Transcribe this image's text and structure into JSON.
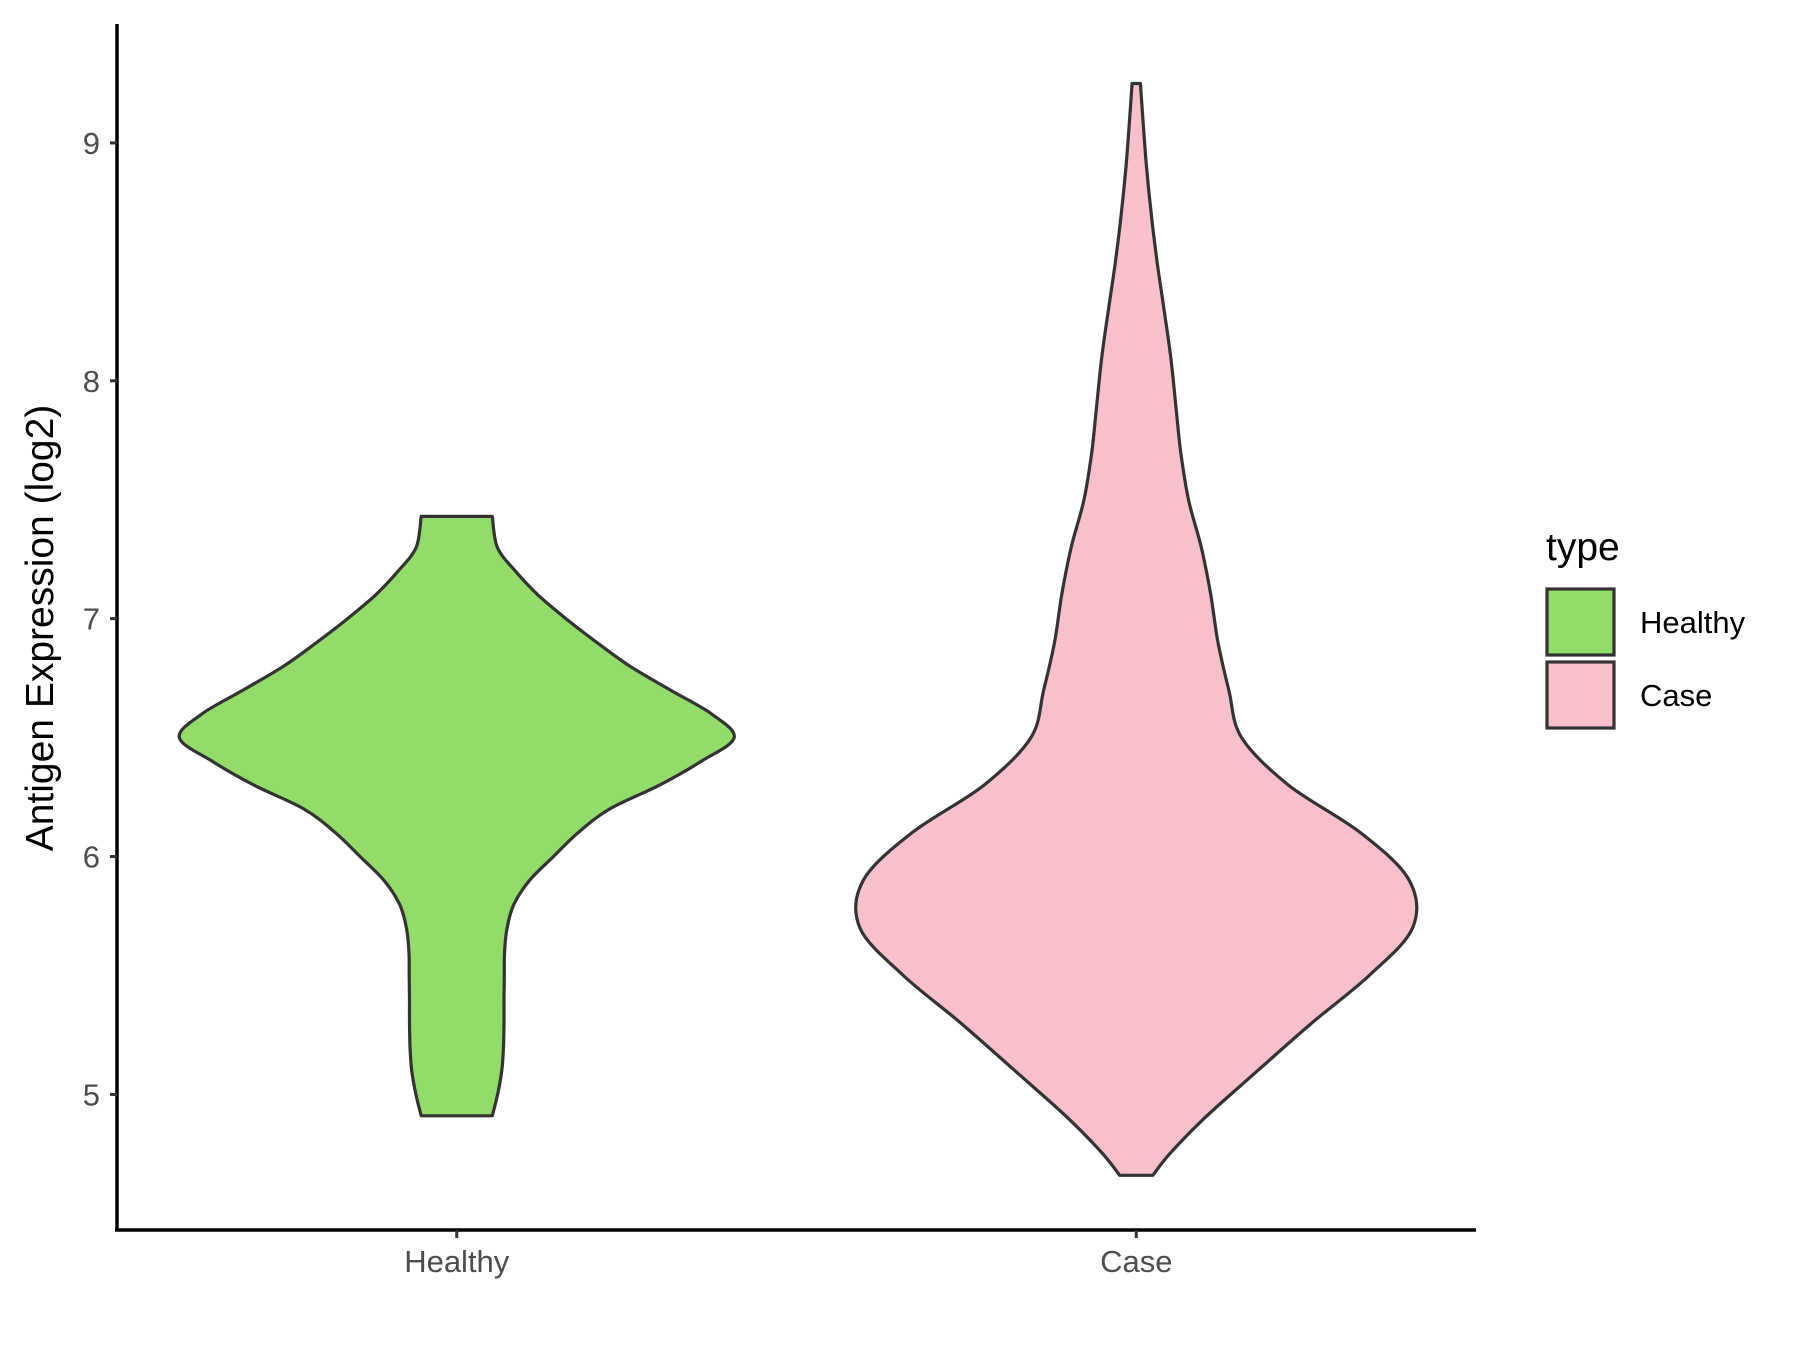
{
  "chart_data": {
    "type": "violin",
    "title": "",
    "xlabel": "",
    "ylabel": "Antigen Expression (log2)",
    "categories": [
      "Healthy",
      "Case"
    ],
    "yticks": [
      5,
      6,
      7,
      8,
      9
    ],
    "ylim": [
      4.43,
      9.5
    ],
    "grid": false,
    "legend": {
      "title": "type",
      "position": "right",
      "entries": [
        {
          "label": "Healthy",
          "color": "#93DC6A"
        },
        {
          "label": "Case",
          "color": "#F8C0CB"
        }
      ]
    },
    "series": [
      {
        "category": "Healthy",
        "color": "#93DC6A",
        "min": 4.91,
        "max": 7.43,
        "density_profile": [
          [
            4.91,
            0.128
          ],
          [
            5.0,
            0.147
          ],
          [
            5.1,
            0.162
          ],
          [
            5.2,
            0.168
          ],
          [
            5.3,
            0.17
          ],
          [
            5.4,
            0.17
          ],
          [
            5.5,
            0.171
          ],
          [
            5.6,
            0.172
          ],
          [
            5.7,
            0.181
          ],
          [
            5.8,
            0.206
          ],
          [
            5.9,
            0.262
          ],
          [
            6.0,
            0.348
          ],
          [
            6.1,
            0.436
          ],
          [
            6.2,
            0.55
          ],
          [
            6.3,
            0.729
          ],
          [
            6.4,
            0.879
          ],
          [
            6.5,
            0.998
          ],
          [
            6.6,
            0.916
          ],
          [
            6.7,
            0.768
          ],
          [
            6.8,
            0.623
          ],
          [
            6.9,
            0.504
          ],
          [
            7.0,
            0.393
          ],
          [
            7.1,
            0.292
          ],
          [
            7.2,
            0.211
          ],
          [
            7.3,
            0.146
          ],
          [
            7.43,
            0.128
          ]
        ]
      },
      {
        "category": "Case",
        "color": "#F8C0CB",
        "min": 4.66,
        "max": 9.25,
        "density_profile": [
          [
            4.66,
            0.06
          ],
          [
            4.75,
            0.12
          ],
          [
            4.9,
            0.245
          ],
          [
            5.1,
            0.437
          ],
          [
            5.3,
            0.631
          ],
          [
            5.5,
            0.838
          ],
          [
            5.7,
            0.994
          ],
          [
            5.9,
            0.982
          ],
          [
            6.1,
            0.807
          ],
          [
            6.3,
            0.548
          ],
          [
            6.5,
            0.379
          ],
          [
            6.7,
            0.333
          ],
          [
            6.9,
            0.294
          ],
          [
            7.1,
            0.268
          ],
          [
            7.3,
            0.234
          ],
          [
            7.5,
            0.188
          ],
          [
            7.7,
            0.16
          ],
          [
            7.9,
            0.142
          ],
          [
            8.1,
            0.124
          ],
          [
            8.3,
            0.1
          ],
          [
            8.5,
            0.075
          ],
          [
            8.7,
            0.054
          ],
          [
            8.9,
            0.037
          ],
          [
            9.1,
            0.024
          ],
          [
            9.25,
            0.015
          ]
        ]
      }
    ]
  }
}
